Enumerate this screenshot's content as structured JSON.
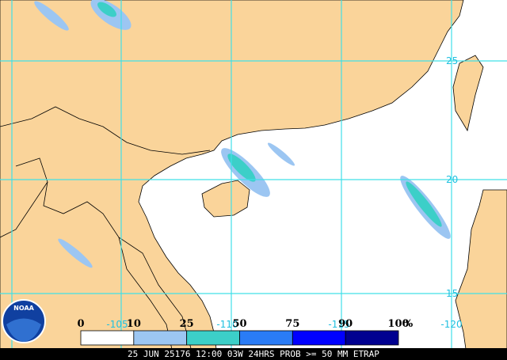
{
  "map": {
    "lat_labels": [
      25,
      20,
      15
    ],
    "lon_labels": [
      -105,
      -110,
      -115,
      -120
    ],
    "legend": {
      "bins": [
        0,
        10,
        25,
        50,
        75,
        90,
        100
      ],
      "unit": "%",
      "colors": [
        "#ffffff",
        "#9cc6f2",
        "#3ccfc8",
        "#2a7cf6",
        "#0000ff",
        "#000090"
      ]
    },
    "footer": "25 JUN 25176 12:00 03W 24HRS PROB >= 50 MM ETRAP"
  }
}
